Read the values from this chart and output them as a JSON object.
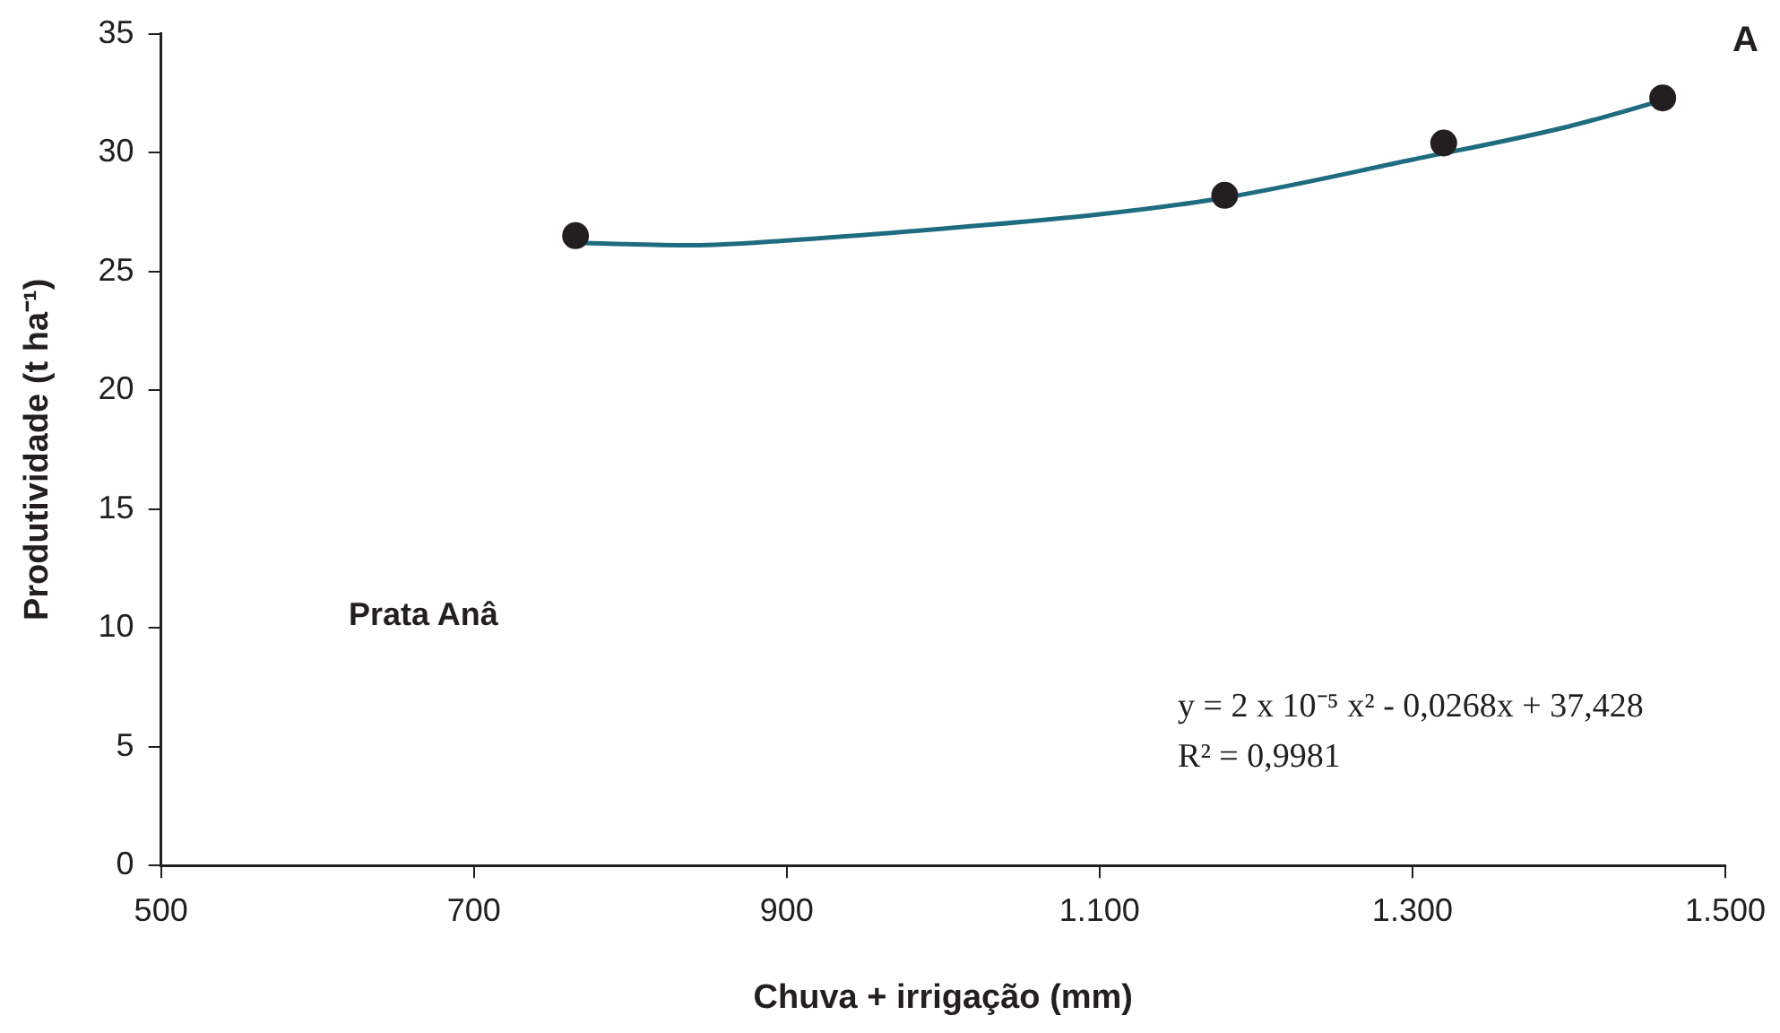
{
  "chart_data": {
    "type": "scatter",
    "xlabel": "Chuva + irrigação (mm)",
    "ylabel": "Produtividade (t ha⁻¹)",
    "xlim": [
      500,
      1500
    ],
    "xticks": [
      500,
      700,
      900,
      {
        "value": 1100,
        "label": "1.100"
      },
      {
        "value": 1300,
        "label": "1.300"
      },
      {
        "value": 1500,
        "label": "1.500"
      }
    ],
    "ylim": [
      0,
      35
    ],
    "yticks": [
      0,
      5,
      10,
      15,
      20,
      25,
      30,
      35
    ],
    "grid": false,
    "legend": false,
    "marker": "circle",
    "series": [
      {
        "color": "#231f20",
        "x": [
          765,
          1180,
          1320,
          1460
        ],
        "values": [
          26.5,
          28.2,
          30.4,
          32.3
        ]
      },
      {
        "type": "line",
        "color": "#1f6b80",
        "marker": "none",
        "line_style": "solid",
        "x": [
          765,
          840,
          900,
          1000,
          1100,
          1180,
          1300,
          1400,
          1460
        ],
        "values": [
          26.2,
          26.1,
          26.3,
          26.8,
          27.4,
          28.1,
          29.7,
          31.1,
          32.2
        ]
      }
    ],
    "annotations": [
      "A",
      "Prata Anâ",
      "y = 2 x 10⁻⁵ x² - 0,0268x + 37,428",
      "R² = 0,9981"
    ]
  }
}
